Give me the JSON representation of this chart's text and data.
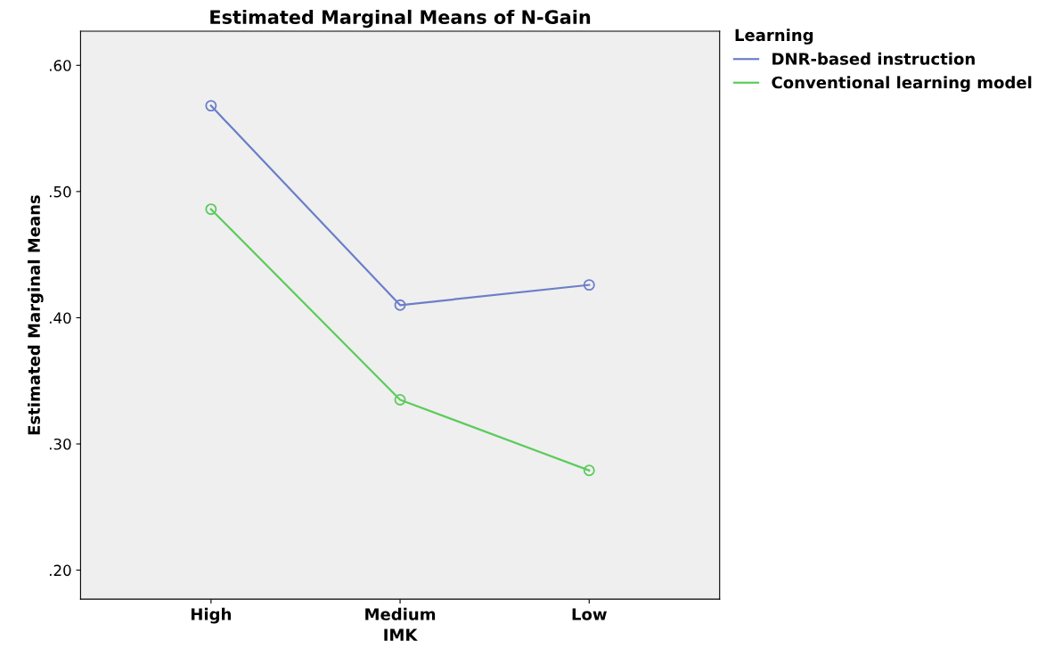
{
  "chart_data": {
    "type": "line",
    "title": "Estimated Marginal Means of N-Gain",
    "xlabel": "IMK",
    "ylabel": "Estimated Marginal Means",
    "legend_title": "Learning",
    "categories": [
      "High",
      "Medium",
      "Low"
    ],
    "series": [
      {
        "name": "DNR-based instruction",
        "color": "#6b7fc9",
        "values": [
          0.568,
          0.41,
          0.426
        ]
      },
      {
        "name": "Conventional learning model",
        "color": "#5ccb5c",
        "values": [
          0.486,
          0.335,
          0.279
        ]
      }
    ],
    "ylim": [
      0.177,
      0.627
    ],
    "yticks": [
      {
        "value": 0.2,
        "label": ".20"
      },
      {
        "value": 0.3,
        "label": ".30"
      },
      {
        "value": 0.4,
        "label": ".40"
      },
      {
        "value": 0.5,
        "label": ".50"
      },
      {
        "value": 0.6,
        "label": ".60"
      }
    ],
    "grid": false,
    "legend": "top right",
    "marker": "circle",
    "line_style": "solid"
  }
}
